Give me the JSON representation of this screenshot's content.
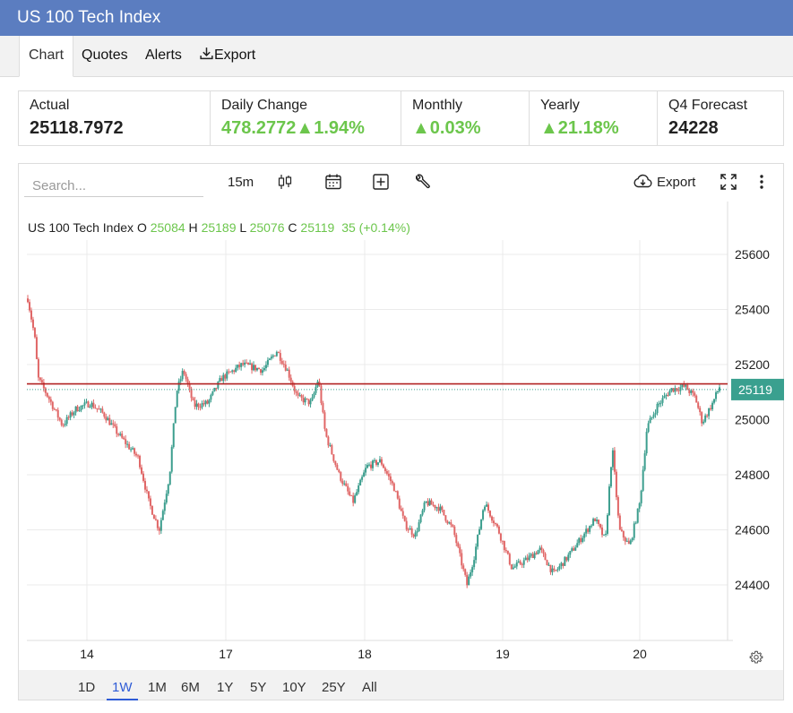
{
  "title": "US 100 Tech Index",
  "tabs": [
    {
      "label": "Chart",
      "active": true
    },
    {
      "label": "Quotes"
    },
    {
      "label": "Alerts"
    },
    {
      "label": "Export",
      "icon": "download-icon"
    }
  ],
  "stats": [
    {
      "label": "Actual",
      "value": "25118.7972"
    },
    {
      "label": "Daily Change",
      "value": "478.2772",
      "pct": "1.94%",
      "direction": "up"
    },
    {
      "label": "Monthly",
      "value": "0.03%",
      "direction": "up"
    },
    {
      "label": "Yearly",
      "value": "21.18%",
      "direction": "up"
    },
    {
      "label": "Q4 Forecast",
      "value": "24228"
    }
  ],
  "toolbar": {
    "search_placeholder": "Search...",
    "interval": "15m",
    "export_label": "Export",
    "icons": [
      "candlestick-icon",
      "calendar-icon",
      "add-indicator-icon",
      "wrench-icon",
      "cloud-download-icon",
      "fullscreen-icon",
      "more-vertical-icon"
    ]
  },
  "legend": {
    "name": "US 100 Tech Index",
    "o_label": "O",
    "o": "25084",
    "h_label": "H",
    "h": "25189",
    "l_label": "L",
    "l": "25076",
    "c_label": "C",
    "c": "25119",
    "change": "35 (+0.14%)"
  },
  "colors": {
    "up": "#3c9e8e",
    "down": "#e06666",
    "price_line": "#b22222",
    "price_label_bg": "#3aa08f",
    "positive_text": "#6cc64c",
    "header": "#5b7dc0"
  },
  "ranges": [
    "1D",
    "1W",
    "1M",
    "6M",
    "1Y",
    "5Y",
    "10Y",
    "25Y",
    "All"
  ],
  "active_range": "1W",
  "chart_data": {
    "type": "candlestick",
    "interval": "15m",
    "x_tick_labels": [
      "14",
      "17",
      "18",
      "19",
      "20"
    ],
    "y_tick_labels": [
      "25600",
      "25400",
      "25200",
      "25000",
      "24800",
      "24600",
      "24400"
    ],
    "ylim": [
      24200,
      25740
    ],
    "grid": true,
    "current_price": 25119,
    "current_price_label": "25119",
    "price_line": 25130,
    "close_path": [
      [
        0.0,
        25440
      ],
      [
        0.01,
        25300
      ],
      [
        0.015,
        25150
      ],
      [
        0.03,
        25080
      ],
      [
        0.05,
        24980
      ],
      [
        0.07,
        25040
      ],
      [
        0.09,
        25060
      ],
      [
        0.11,
        25020
      ],
      [
        0.13,
        24950
      ],
      [
        0.16,
        24860
      ],
      [
        0.175,
        24700
      ],
      [
        0.19,
        24600
      ],
      [
        0.205,
        24800
      ],
      [
        0.215,
        25100
      ],
      [
        0.225,
        25180
      ],
      [
        0.24,
        25050
      ],
      [
        0.26,
        25060
      ],
      [
        0.28,
        25150
      ],
      [
        0.31,
        25200
      ],
      [
        0.34,
        25180
      ],
      [
        0.36,
        25250
      ],
      [
        0.375,
        25180
      ],
      [
        0.39,
        25080
      ],
      [
        0.41,
        25060
      ],
      [
        0.42,
        25150
      ],
      [
        0.43,
        24950
      ],
      [
        0.45,
        24800
      ],
      [
        0.47,
        24700
      ],
      [
        0.49,
        24830
      ],
      [
        0.51,
        24850
      ],
      [
        0.53,
        24750
      ],
      [
        0.545,
        24620
      ],
      [
        0.56,
        24580
      ],
      [
        0.575,
        24700
      ],
      [
        0.595,
        24680
      ],
      [
        0.615,
        24600
      ],
      [
        0.635,
        24400
      ],
      [
        0.645,
        24500
      ],
      [
        0.66,
        24700
      ],
      [
        0.68,
        24600
      ],
      [
        0.7,
        24460
      ],
      [
        0.72,
        24490
      ],
      [
        0.74,
        24530
      ],
      [
        0.76,
        24440
      ],
      [
        0.78,
        24500
      ],
      [
        0.8,
        24570
      ],
      [
        0.82,
        24640
      ],
      [
        0.835,
        24560
      ],
      [
        0.845,
        24900
      ],
      [
        0.855,
        24600
      ],
      [
        0.87,
        24540
      ],
      [
        0.885,
        24700
      ],
      [
        0.895,
        24970
      ],
      [
        0.91,
        25050
      ],
      [
        0.93,
        25110
      ],
      [
        0.95,
        25120
      ],
      [
        0.965,
        25080
      ],
      [
        0.975,
        24990
      ],
      [
        0.99,
        25060
      ],
      [
        1.0,
        25119
      ]
    ]
  }
}
